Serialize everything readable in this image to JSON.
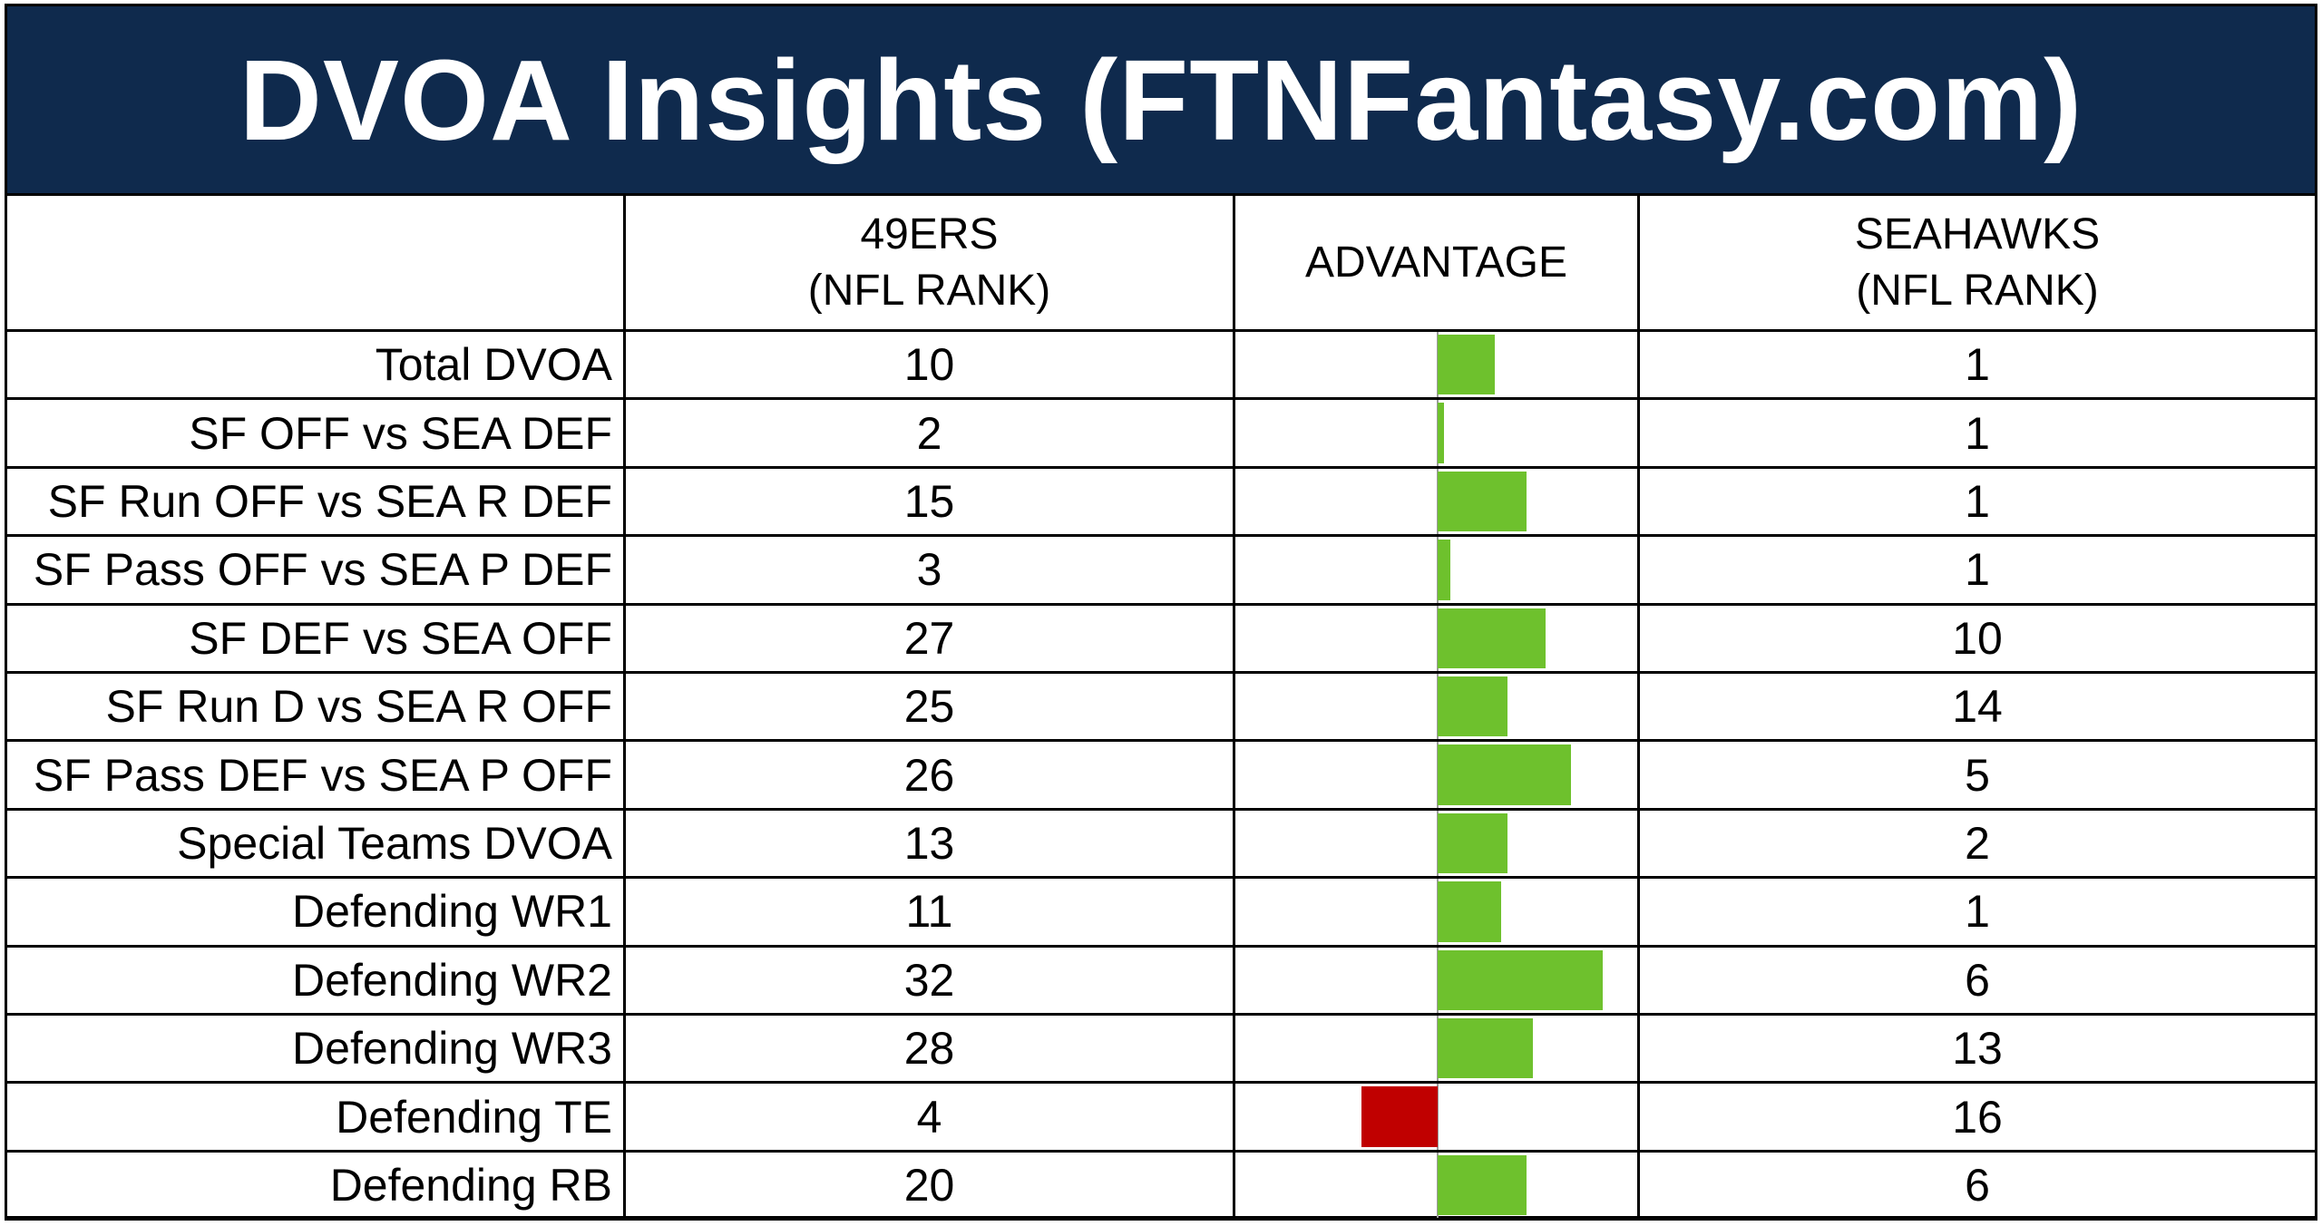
{
  "title": "DVOA Insights (FTNFantasy.com)",
  "headers": {
    "team1_line1": "49ERS",
    "team1_line2": "(NFL RANK)",
    "advantage": "ADVANTAGE",
    "team2_line1": "SEAHAWKS",
    "team2_line2": "(NFL RANK)"
  },
  "colors": {
    "title_bg": "#0f2a4d",
    "positive": "#6ec12d",
    "negative": "#c00000"
  },
  "chart_data": {
    "type": "table",
    "columns": [
      "",
      "49ERS (NFL RANK)",
      "ADVANTAGE",
      "SEAHAWKS (NFL RANK)"
    ],
    "rows": [
      {
        "label": "Total DVOA",
        "team1": "10",
        "team2": "1",
        "advantage": 9
      },
      {
        "label": "SF OFF vs SEA DEF",
        "team1": "2",
        "team2": "1",
        "advantage": 1
      },
      {
        "label": "SF Run OFF vs SEA R DEF",
        "team1": "15",
        "team2": "1",
        "advantage": 14
      },
      {
        "label": "SF Pass OFF vs SEA P DEF",
        "team1": "3",
        "team2": "1",
        "advantage": 2
      },
      {
        "label": "SF DEF vs SEA OFF",
        "team1": "27",
        "team2": "10",
        "advantage": 17
      },
      {
        "label": "SF Run D vs SEA R OFF",
        "team1": "25",
        "team2": "14",
        "advantage": 11
      },
      {
        "label": "SF Pass DEF vs SEA P OFF",
        "team1": "26",
        "team2": "5",
        "advantage": 21
      },
      {
        "label": "Special Teams DVOA",
        "team1": "13",
        "team2": "2",
        "advantage": 11
      },
      {
        "label": "Defending WR1",
        "team1": "11",
        "team2": "1",
        "advantage": 10
      },
      {
        "label": "Defending WR2",
        "team1": "32",
        "team2": "6",
        "advantage": 26
      },
      {
        "label": "Defending WR3",
        "team1": "28",
        "team2": "13",
        "advantage": 15
      },
      {
        "label": "Defending TE",
        "team1": "4",
        "team2": "16",
        "advantage": -12
      },
      {
        "label": "Defending RB",
        "team1": "20",
        "team2": "6",
        "advantage": 14
      }
    ]
  }
}
